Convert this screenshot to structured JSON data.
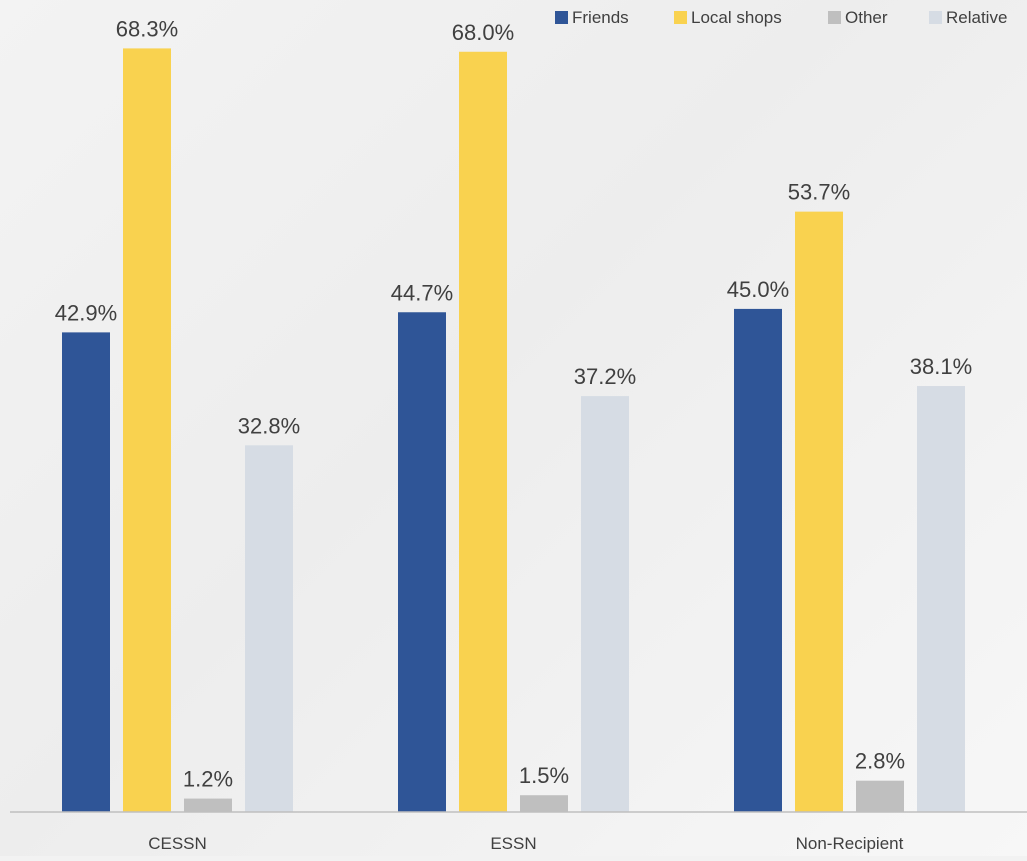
{
  "chart_data": {
    "type": "bar",
    "title": "",
    "xlabel": "",
    "ylabel": "",
    "ylim": [
      0,
      70
    ],
    "grid": false,
    "legend_position": "top-right",
    "categories": [
      "CESSN",
      "ESSN",
      "Non-Recipient"
    ],
    "series": [
      {
        "name": "Friends",
        "color": "#2f5597",
        "values": [
          42.9,
          44.7,
          45.0
        ],
        "labels": [
          "42.9%",
          "44.7%",
          "45.0%"
        ]
      },
      {
        "name": "Local shops",
        "color": "#f9d24f",
        "values": [
          68.3,
          68.0,
          53.7
        ],
        "labels": [
          "68.3%",
          "68.0%",
          "53.7%"
        ]
      },
      {
        "name": "Other",
        "color": "#bfbfbf",
        "values": [
          1.2,
          1.5,
          2.8
        ],
        "labels": [
          "1.2%",
          "1.5%",
          "2.8%"
        ]
      },
      {
        "name": "Relative",
        "color": "#d6dce4",
        "values": [
          32.8,
          37.2,
          38.1
        ],
        "labels": [
          "32.8%",
          "37.2%",
          "38.1%"
        ]
      }
    ]
  }
}
